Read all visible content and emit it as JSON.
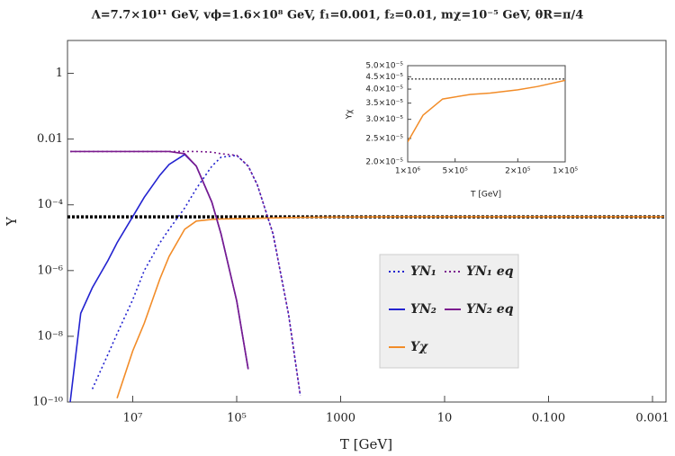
{
  "chart_data": [
    {
      "type": "line",
      "title": "Λ=7.7×10¹¹ GeV, vϕ=1.6×10⁸ GeV, f₁=0.001, f₂=0.01, mχ=10⁻⁵ GeV, θR=π/4",
      "xlabel": "T [GeV]",
      "ylabel": "Y",
      "xscale": "log",
      "yscale": "log",
      "legend": "center",
      "xlim": [
        180000000.0,
        0.00055
      ],
      "ylim": [
        1e-10,
        10
      ],
      "xticks": [
        {
          "value": 10000000.0,
          "label": "10⁷"
        },
        {
          "value": 100000.0,
          "label": "10⁵"
        },
        1000,
        10,
        {
          "value": 0.1,
          "label": "0.100"
        },
        0.001
      ],
      "yticks": [
        1,
        0.01,
        {
          "value": 0.0001,
          "label": "10⁻⁴"
        },
        {
          "value": 1e-06,
          "label": "10⁻⁶"
        },
        {
          "value": 1e-08,
          "label": "10⁻⁸"
        },
        {
          "value": 1e-10,
          "label": "10⁻¹⁰"
        }
      ],
      "x": [
        160000000.0,
        100000000.0,
        60000000.0,
        30000000.0,
        20000000.0,
        10000000.0,
        6000000.0,
        3000000.0,
        2000000.0,
        1000000.0,
        600000.0,
        300000.0,
        200000.0,
        100000.0,
        60000.0,
        40000.0,
        20000.0,
        10000.0,
        6000,
        1000,
        100,
        10,
        1,
        0.1,
        0.01,
        0.001,
        0.0006
      ],
      "reference_y": 4.3e-05,
      "series": [
        {
          "name": "YN₁",
          "color": "#2323d0",
          "dash": "dotted",
          "values": [
            null,
            null,
            2.5e-10,
            2.8e-09,
            1.2e-08,
            1.3e-07,
            1e-06,
            7e-06,
            1.8e-05,
            8e-05,
            0.00031,
            0.0015,
            0.0028,
            0.0032,
            0.0015,
            0.0004,
            1.3e-05,
            4.5e-08,
            1.6e-10,
            null,
            null,
            null,
            null,
            null,
            null,
            null,
            null
          ]
        },
        {
          "name": "YN₂",
          "color": "#2323d0",
          "dash": "solid",
          "values": [
            1e-10,
            5e-08,
            3e-07,
            2e-06,
            7e-06,
            4.4e-05,
            0.00017,
            0.0008,
            0.0017,
            0.0034,
            0.0015,
            0.00012,
            1.3e-05,
            1.2e-07,
            1e-09,
            null,
            null,
            null,
            null,
            null,
            null,
            null,
            null,
            null,
            null,
            null,
            null
          ]
        },
        {
          "name": "Yχ",
          "color": "#f28c28",
          "dash": "solid",
          "values": [
            null,
            null,
            null,
            null,
            1.3e-10,
            3.6e-09,
            2.5e-08,
            5.6e-07,
            2.7e-06,
            1.8e-05,
            3.2e-05,
            3.6e-05,
            3.7e-05,
            3.8e-05,
            3.85e-05,
            3.9e-05,
            4e-05,
            4.1e-05,
            4.15e-05,
            4.25e-05,
            4.3e-05,
            4.3e-05,
            4.3e-05,
            4.3e-05,
            4.3e-05,
            4.3e-05,
            4.3e-05
          ]
        },
        {
          "name": "YN₁ eq",
          "color": "#7b1b8e",
          "dash": "dotted",
          "values": [
            0.0042,
            0.0042,
            0.0042,
            0.0042,
            0.0042,
            0.0042,
            0.0042,
            0.0042,
            0.0042,
            0.0042,
            0.0042,
            0.004,
            0.0036,
            0.0032,
            0.0015,
            0.0004,
            1.3e-05,
            4.5e-08,
            1.6e-10,
            null,
            null,
            null,
            null,
            null,
            null,
            null,
            null
          ]
        },
        {
          "name": "YN₂ eq",
          "color": "#7b1b8e",
          "dash": "solid",
          "values": [
            0.0042,
            0.0042,
            0.0042,
            0.0042,
            0.0042,
            0.0042,
            0.0042,
            0.0042,
            0.0042,
            0.0036,
            0.0015,
            0.00012,
            1.3e-05,
            1.2e-07,
            1e-09,
            null,
            null,
            null,
            null,
            null,
            null,
            null,
            null,
            null,
            null,
            null,
            null
          ]
        }
      ]
    },
    {
      "type": "line",
      "xlabel": "T [GeV]",
      "ylabel": "Yχ",
      "xscale": "log",
      "yscale": "log",
      "xlim": [
        1000000.0,
        100000.0
      ],
      "ylim": [
        2e-05,
        5e-05
      ],
      "xticks": [
        {
          "value": 1000000.0,
          "label": "1×10⁶"
        },
        {
          "value": 500000.0,
          "label": "5×10⁵"
        },
        {
          "value": 200000.0,
          "label": "2×10⁵"
        },
        {
          "value": 100000.0,
          "label": "1×10⁵"
        }
      ],
      "yticks": [
        {
          "value": 2e-05,
          "label": "2.0×10⁻⁵"
        },
        {
          "value": 2.5e-05,
          "label": "2.5×10⁻⁵"
        },
        {
          "value": 3e-05,
          "label": "3.0×10⁻⁵"
        },
        {
          "value": 3.5e-05,
          "label": "3.5×10⁻⁵"
        },
        {
          "value": 4e-05,
          "label": "4.0×10⁻⁵"
        },
        {
          "value": 4.5e-05,
          "label": "4.5×10⁻⁵"
        },
        {
          "value": 5e-05,
          "label": "5.0×10⁻⁵"
        }
      ],
      "x": [
        1000000.0,
        800000.0,
        600000.0,
        400000.0,
        300000.0,
        200000.0,
        150000.0,
        100000.0
      ],
      "reference_y": 4.4e-05,
      "series": [
        {
          "color": "#f28c28",
          "dash": "solid",
          "values": [
            2.42e-05,
            3.12e-05,
            3.64e-05,
            3.8e-05,
            3.85e-05,
            3.97e-05,
            4.1e-05,
            4.35e-05
          ]
        }
      ]
    }
  ]
}
